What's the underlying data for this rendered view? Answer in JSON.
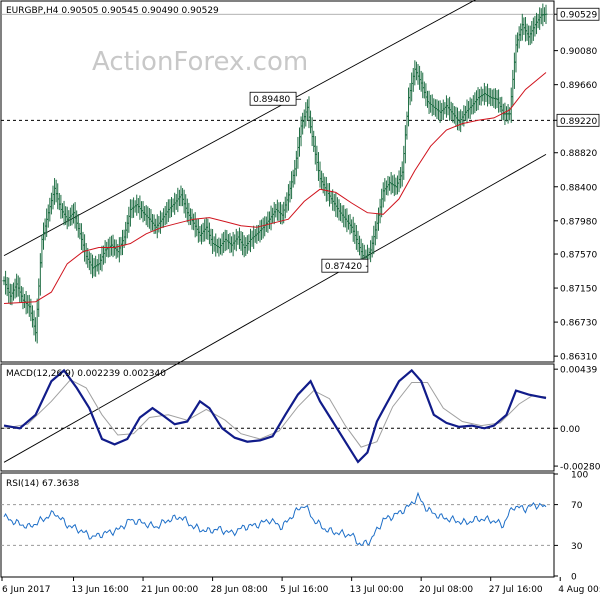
{
  "chart_data": [
    {
      "type": "line",
      "title": "EURGBP,H4  0.90505 0.90545 0.90490 0.90529",
      "watermark": "ActionForex.com",
      "ylim": [
        0.8625,
        0.9068
      ],
      "y_ticks": [
        "0.90529",
        "0.90080",
        "0.89660",
        "0.89220",
        "0.88820",
        "0.88400",
        "0.87980",
        "0.87570",
        "0.87150",
        "0.86730",
        "0.86310"
      ],
      "y_tick_values": [
        0.90529,
        0.9008,
        0.8966,
        0.8922,
        0.8882,
        0.884,
        0.8798,
        0.8757,
        0.8715,
        0.8673,
        0.8631
      ],
      "x_labels": [
        "6 Jun 2017",
        "13 Jun 16:00",
        "21 Jun 00:00",
        "28 Jun 08:00",
        "5 Jul 16:00",
        "13 Jul 00:00",
        "20 Jul 08:00",
        "27 Jul 16:00",
        "4 Aug 00:00"
      ],
      "x_label_index": [
        0,
        44,
        88,
        132,
        176,
        220,
        264,
        308,
        352
      ],
      "price_series": [
        [
          0,
          0.8724
        ],
        [
          4,
          0.8705
        ],
        [
          8,
          0.872
        ],
        [
          12,
          0.87
        ],
        [
          16,
          0.8692
        ],
        [
          20,
          0.866
        ],
        [
          24,
          0.8775
        ],
        [
          28,
          0.8808
        ],
        [
          32,
          0.8838
        ],
        [
          36,
          0.8812
        ],
        [
          40,
          0.88
        ],
        [
          44,
          0.8808
        ],
        [
          48,
          0.8782
        ],
        [
          52,
          0.8754
        ],
        [
          56,
          0.874
        ],
        [
          60,
          0.8745
        ],
        [
          64,
          0.8762
        ],
        [
          68,
          0.8768
        ],
        [
          72,
          0.876
        ],
        [
          76,
          0.8778
        ],
        [
          80,
          0.8812
        ],
        [
          84,
          0.8818
        ],
        [
          88,
          0.8808
        ],
        [
          92,
          0.88
        ],
        [
          96,
          0.879
        ],
        [
          100,
          0.88
        ],
        [
          104,
          0.8812
        ],
        [
          108,
          0.882
        ],
        [
          112,
          0.883
        ],
        [
          116,
          0.8808
        ],
        [
          120,
          0.8795
        ],
        [
          124,
          0.878
        ],
        [
          128,
          0.879
        ],
        [
          132,
          0.877
        ],
        [
          136,
          0.8765
        ],
        [
          140,
          0.8775
        ],
        [
          144,
          0.8768
        ],
        [
          148,
          0.8778
        ],
        [
          152,
          0.8765
        ],
        [
          156,
          0.8775
        ],
        [
          160,
          0.8782
        ],
        [
          164,
          0.879
        ],
        [
          168,
          0.88
        ],
        [
          172,
          0.8812
        ],
        [
          176,
          0.8805
        ],
        [
          180,
          0.883
        ],
        [
          184,
          0.8862
        ],
        [
          188,
          0.8915
        ],
        [
          192,
          0.8938
        ],
        [
          196,
          0.889
        ],
        [
          200,
          0.885
        ],
        [
          204,
          0.8835
        ],
        [
          208,
          0.8822
        ],
        [
          212,
          0.881
        ],
        [
          216,
          0.88
        ],
        [
          220,
          0.879
        ],
        [
          224,
          0.877
        ],
        [
          228,
          0.875
        ],
        [
          232,
          0.8762
        ],
        [
          236,
          0.8795
        ],
        [
          240,
          0.8835
        ],
        [
          244,
          0.8845
        ],
        [
          248,
          0.884
        ],
        [
          252,
          0.8858
        ],
        [
          256,
          0.895
        ],
        [
          260,
          0.8985
        ],
        [
          264,
          0.8968
        ],
        [
          268,
          0.8945
        ],
        [
          272,
          0.8938
        ],
        [
          276,
          0.8932
        ],
        [
          280,
          0.894
        ],
        [
          284,
          0.893
        ],
        [
          288,
          0.892
        ],
        [
          292,
          0.8932
        ],
        [
          296,
          0.894
        ],
        [
          300,
          0.895
        ],
        [
          304,
          0.8955
        ],
        [
          308,
          0.895
        ],
        [
          312,
          0.8948
        ],
        [
          316,
          0.893
        ],
        [
          320,
          0.893
        ],
        [
          324,
          0.9015
        ],
        [
          328,
          0.904
        ],
        [
          332,
          0.9025
        ],
        [
          336,
          0.904
        ],
        [
          340,
          0.9052
        ],
        [
          343,
          0.90529
        ]
      ],
      "ma_series": [
        [
          0,
          0.8696
        ],
        [
          20,
          0.8698
        ],
        [
          30,
          0.871
        ],
        [
          40,
          0.8745
        ],
        [
          50,
          0.876
        ],
        [
          60,
          0.8765
        ],
        [
          70,
          0.8765
        ],
        [
          80,
          0.877
        ],
        [
          90,
          0.8782
        ],
        [
          100,
          0.879
        ],
        [
          110,
          0.8795
        ],
        [
          120,
          0.88
        ],
        [
          130,
          0.8802
        ],
        [
          140,
          0.8797
        ],
        [
          150,
          0.8792
        ],
        [
          160,
          0.879
        ],
        [
          170,
          0.8795
        ],
        [
          180,
          0.88
        ],
        [
          190,
          0.8822
        ],
        [
          200,
          0.8837
        ],
        [
          210,
          0.8833
        ],
        [
          220,
          0.882
        ],
        [
          230,
          0.8808
        ],
        [
          240,
          0.8806
        ],
        [
          250,
          0.8825
        ],
        [
          260,
          0.886
        ],
        [
          270,
          0.889
        ],
        [
          280,
          0.891
        ],
        [
          290,
          0.8918
        ],
        [
          300,
          0.8922
        ],
        [
          310,
          0.8925
        ],
        [
          320,
          0.8935
        ],
        [
          330,
          0.896
        ],
        [
          343,
          0.8981
        ]
      ],
      "channel_upper": [
        [
          0,
          0.8755
        ],
        [
          343,
          0.9118
        ]
      ],
      "channel_lower": [
        [
          0,
          0.85
        ],
        [
          343,
          0.888
        ]
      ],
      "horizontal_level": 0.8922,
      "current_price": 0.90529,
      "annotations": [
        {
          "label": "0.89480",
          "x": 188,
          "y": 0.8948
        },
        {
          "label": "0.87420",
          "x": 229,
          "y": 0.8742
        }
      ]
    },
    {
      "type": "line",
      "title": "MACD(12,26,9) 0.002239 0.002340",
      "ylim": [
        -0.0031,
        0.0047
      ],
      "y_ticks": [
        "0.00439",
        "0.00",
        "-0.002809"
      ],
      "y_tick_values": [
        0.00439,
        0.0,
        -0.002809
      ],
      "zero_line": 0.0,
      "macd_series": [
        [
          0,
          0.0002
        ],
        [
          10,
          0.0
        ],
        [
          20,
          0.001
        ],
        [
          30,
          0.0035
        ],
        [
          38,
          0.0043
        ],
        [
          46,
          0.003
        ],
        [
          54,
          0.0015
        ],
        [
          62,
          -0.0008
        ],
        [
          70,
          -0.0012
        ],
        [
          78,
          -0.0008
        ],
        [
          86,
          0.0008
        ],
        [
          94,
          0.0015
        ],
        [
          100,
          0.001
        ],
        [
          108,
          0.0003
        ],
        [
          116,
          0.0005
        ],
        [
          124,
          0.002
        ],
        [
          130,
          0.0015
        ],
        [
          138,
          0.0
        ],
        [
          146,
          -0.0007
        ],
        [
          154,
          -0.001
        ],
        [
          162,
          -0.0009
        ],
        [
          170,
          -0.0006
        ],
        [
          178,
          0.001
        ],
        [
          186,
          0.0025
        ],
        [
          194,
          0.0035
        ],
        [
          200,
          0.002
        ],
        [
          208,
          0.0005
        ],
        [
          216,
          -0.001
        ],
        [
          224,
          -0.0025
        ],
        [
          230,
          -0.0018
        ],
        [
          236,
          0.0005
        ],
        [
          242,
          0.0018
        ],
        [
          250,
          0.0035
        ],
        [
          258,
          0.0043
        ],
        [
          264,
          0.0035
        ],
        [
          272,
          0.001
        ],
        [
          280,
          0.0004
        ],
        [
          288,
          0.0001
        ],
        [
          296,
          0.0002
        ],
        [
          304,
          0.0
        ],
        [
          310,
          0.0002
        ],
        [
          318,
          0.001
        ],
        [
          324,
          0.0028
        ],
        [
          332,
          0.0025
        ],
        [
          343,
          0.00224
        ]
      ],
      "signal_series": [
        [
          0,
          0.0
        ],
        [
          15,
          0.0003
        ],
        [
          30,
          0.002
        ],
        [
          42,
          0.0036
        ],
        [
          52,
          0.003
        ],
        [
          62,
          0.001
        ],
        [
          72,
          -0.0005
        ],
        [
          82,
          -0.0004
        ],
        [
          92,
          0.0008
        ],
        [
          104,
          0.001
        ],
        [
          116,
          0.0006
        ],
        [
          128,
          0.0014
        ],
        [
          140,
          0.0006
        ],
        [
          150,
          -0.0004
        ],
        [
          162,
          -0.0008
        ],
        [
          174,
          -0.0002
        ],
        [
          186,
          0.0016
        ],
        [
          196,
          0.0028
        ],
        [
          206,
          0.0022
        ],
        [
          216,
          0.0002
        ],
        [
          226,
          -0.0014
        ],
        [
          236,
          -0.001
        ],
        [
          246,
          0.0016
        ],
        [
          258,
          0.0034
        ],
        [
          268,
          0.0034
        ],
        [
          278,
          0.0015
        ],
        [
          290,
          0.0005
        ],
        [
          302,
          0.0002
        ],
        [
          314,
          0.0004
        ],
        [
          326,
          0.0018
        ],
        [
          334,
          0.0024
        ],
        [
          343,
          0.00234
        ]
      ]
    },
    {
      "type": "line",
      "title": "RSI(14) 67.3638",
      "ylim": [
        0,
        100
      ],
      "y_ticks": [
        "100",
        "70",
        "30",
        "0"
      ],
      "y_tick_values": [
        100,
        70,
        30,
        0
      ],
      "reference_lines": [
        70,
        30
      ],
      "rsi_series": [
        [
          0,
          58
        ],
        [
          8,
          52
        ],
        [
          16,
          48
        ],
        [
          24,
          55
        ],
        [
          32,
          62
        ],
        [
          40,
          50
        ],
        [
          48,
          45
        ],
        [
          56,
          38
        ],
        [
          64,
          42
        ],
        [
          72,
          45
        ],
        [
          80,
          55
        ],
        [
          88,
          52
        ],
        [
          96,
          48
        ],
        [
          104,
          55
        ],
        [
          112,
          58
        ],
        [
          120,
          48
        ],
        [
          128,
          44
        ],
        [
          136,
          46
        ],
        [
          144,
          42
        ],
        [
          152,
          48
        ],
        [
          160,
          50
        ],
        [
          168,
          55
        ],
        [
          176,
          48
        ],
        [
          184,
          62
        ],
        [
          190,
          70
        ],
        [
          196,
          55
        ],
        [
          204,
          45
        ],
        [
          212,
          42
        ],
        [
          220,
          40
        ],
        [
          226,
          30
        ],
        [
          232,
          35
        ],
        [
          240,
          55
        ],
        [
          248,
          60
        ],
        [
          256,
          68
        ],
        [
          262,
          78
        ],
        [
          268,
          65
        ],
        [
          276,
          58
        ],
        [
          284,
          55
        ],
        [
          292,
          52
        ],
        [
          300,
          56
        ],
        [
          308,
          55
        ],
        [
          316,
          50
        ],
        [
          322,
          68
        ],
        [
          330,
          66
        ],
        [
          336,
          70
        ],
        [
          343,
          67.3638
        ]
      ]
    }
  ]
}
